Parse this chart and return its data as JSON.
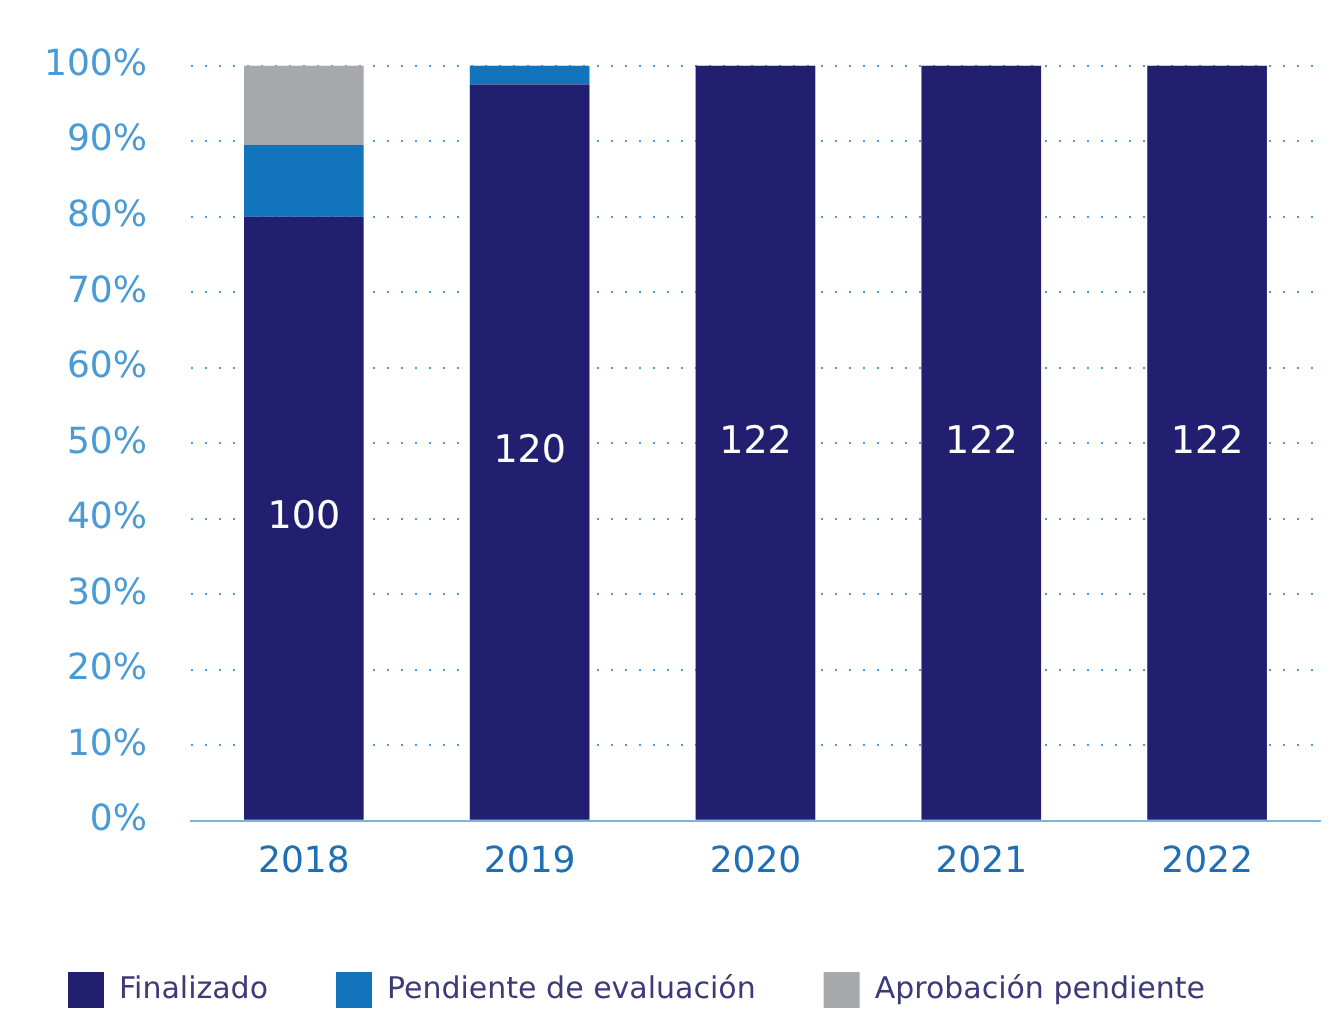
{
  "chart_data": {
    "type": "bar",
    "stacked": true,
    "categories": [
      "2018",
      "2019",
      "2020",
      "2021",
      "2022"
    ],
    "series": [
      {
        "name": "Finalizado",
        "color": "#221f71",
        "values": [
          80,
          97.5,
          100,
          100,
          100
        ]
      },
      {
        "name": "Pendiente de evaluación",
        "color": "#1174bd",
        "values": [
          9.5,
          2.5,
          0,
          0,
          0
        ]
      },
      {
        "name": "Aprobación pendiente",
        "color": "#a7a8ab",
        "values": [
          10.5,
          0,
          0,
          0,
          0
        ]
      }
    ],
    "ylim": [
      0,
      100
    ],
    "yticks": [
      {
        "value": 0,
        "label": "0%"
      },
      {
        "value": 10,
        "label": "10%"
      },
      {
        "value": 20,
        "label": "20%"
      },
      {
        "value": 30,
        "label": "30%"
      },
      {
        "value": 40,
        "label": "40%"
      },
      {
        "value": 50,
        "label": "50%"
      },
      {
        "value": 60,
        "label": "60%"
      },
      {
        "value": 70,
        "label": "70%"
      },
      {
        "value": 80,
        "label": "80%"
      },
      {
        "value": 90,
        "label": "90%"
      },
      {
        "value": 100,
        "label": "100%"
      }
    ],
    "annotations": [
      "100",
      "120",
      "122",
      "122",
      "122"
    ],
    "grid": "y",
    "legend": "bottom"
  }
}
